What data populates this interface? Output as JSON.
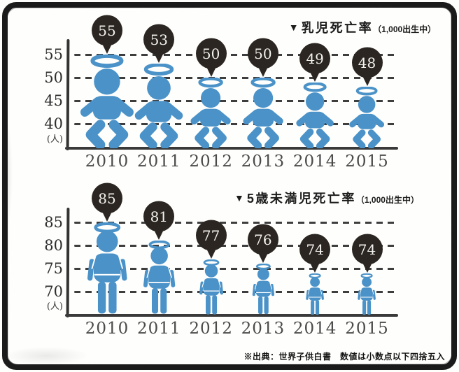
{
  "chart_data": [
    {
      "type": "pictograph",
      "title_marker": "▼",
      "title": "乳児死亡率",
      "unit_note": "（1,000出生中）",
      "y_axis_unit": "(人)",
      "y_ticks": [
        55,
        50,
        45,
        40
      ],
      "ylim": [
        37,
        57
      ],
      "categories": [
        "2010",
        "2011",
        "2012",
        "2013",
        "2014",
        "2015"
      ],
      "values": [
        55,
        53,
        50,
        50,
        49,
        48
      ],
      "icon": "baby-with-halo-icon",
      "grid": "dashed-horizontal",
      "legend": "none"
    },
    {
      "type": "pictograph",
      "title_marker": "▼",
      "title": "5歳未満児死亡率",
      "unit_note": "（1,000出生中）",
      "y_axis_unit": "(人)",
      "y_ticks": [
        85,
        80,
        75,
        70
      ],
      "ylim": [
        67,
        87
      ],
      "categories": [
        "2010",
        "2011",
        "2012",
        "2013",
        "2014",
        "2015"
      ],
      "values": [
        85,
        81,
        77,
        76,
        74,
        74
      ],
      "icon": "standing-child-with-halo-icon",
      "grid": "dashed-horizontal",
      "legend": "none"
    }
  ],
  "footnote": "※出典：世界子供白書　数値は小数点以下四捨五入",
  "colors": {
    "figure_blue": "#4a92c8",
    "bubble_dark": "#2b2622",
    "bubble_text": "#f4f2ee",
    "grid_dark": "#3e3e3e",
    "frame_black": "#1b1b1b"
  }
}
